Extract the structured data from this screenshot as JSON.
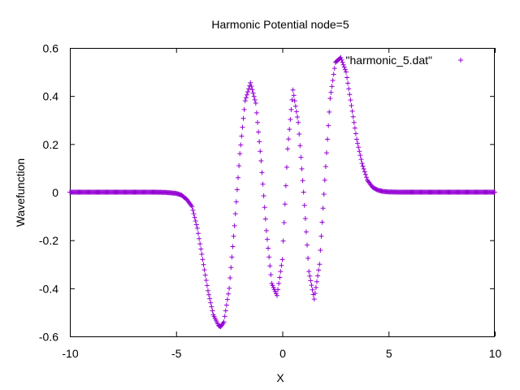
{
  "chart_data": {
    "type": "scatter",
    "title": "Harmonic Potential node=5",
    "xlabel": "X",
    "ylabel": "Wavefunction",
    "xlim": [
      -10,
      10
    ],
    "ylim": [
      -0.6,
      0.6
    ],
    "x_ticks": [
      -10,
      -5,
      0,
      5,
      10
    ],
    "x_tick_labels": [
      "-10",
      "-5",
      "0",
      "5",
      "10"
    ],
    "y_ticks": [
      -0.6,
      -0.4,
      -0.2,
      0,
      0.2,
      0.4,
      0.6
    ],
    "y_tick_labels": [
      "-0.6",
      "-0.4",
      "-0.2",
      "0",
      "0.2",
      "0.4",
      "0.6"
    ],
    "grid": false,
    "legend_position": "top-right",
    "series": [
      {
        "name": "\"harmonic_5.dat\"",
        "color": "#9400d3",
        "marker": "plus",
        "x": [
          -10,
          -9,
          -8,
          -7,
          -6,
          -5.5,
          -5,
          -4.75,
          -4.5,
          -4.25,
          -4,
          -3.75,
          -3.5,
          -3.25,
          -3,
          -2.9,
          -2.75,
          -2.5,
          -2.25,
          -2,
          -1.75,
          -1.5,
          -1.25,
          -1,
          -0.75,
          -0.5,
          -0.25,
          0,
          0.25,
          0.5,
          0.75,
          1,
          1.25,
          1.5,
          1.75,
          2,
          2.25,
          2.5,
          2.75,
          3,
          3.25,
          3.5,
          3.75,
          4,
          4.25,
          4.5,
          4.75,
          5,
          5.5,
          6,
          7,
          8,
          9,
          10
        ],
        "y": [
          0,
          0,
          0,
          0,
          0,
          -0.001,
          -0.005,
          -0.012,
          -0.03,
          -0.06,
          -0.15,
          -0.28,
          -0.41,
          -0.51,
          -0.555,
          -0.56,
          -0.54,
          -0.4,
          -0.14,
          0.16,
          0.38,
          0.455,
          0.37,
          0.13,
          -0.16,
          -0.38,
          -0.43,
          -0.28,
          0.18,
          0.425,
          0.29,
          0.0,
          -0.33,
          -0.445,
          -0.3,
          0.05,
          0.39,
          0.54,
          0.56,
          0.5,
          0.36,
          0.22,
          0.12,
          0.05,
          0.02,
          0.008,
          0.003,
          0.001,
          0,
          0,
          0,
          0,
          0,
          0
        ]
      }
    ]
  }
}
